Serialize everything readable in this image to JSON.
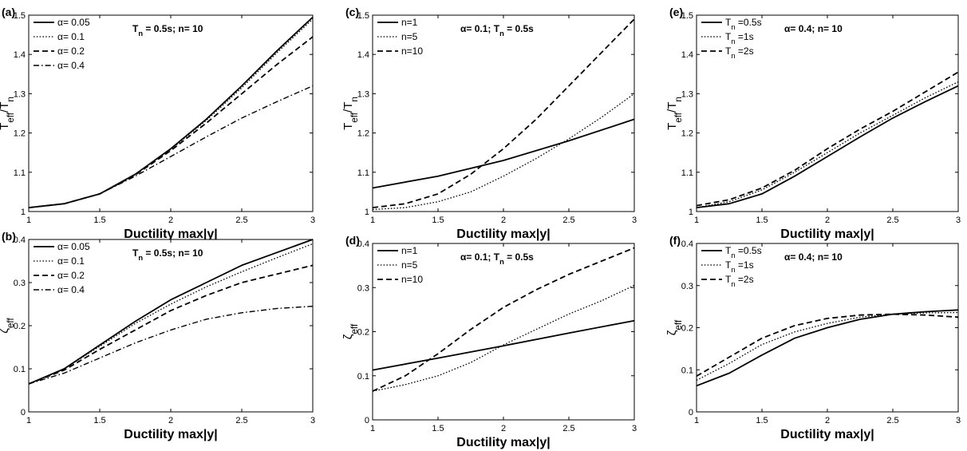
{
  "chart_data": [
    {
      "id": "a",
      "panel_label": "(a)",
      "type": "line",
      "annotation": "T_n = 0.5s; n= 10",
      "xlabel": "Ductility max|y|",
      "ylabel": "T_eff/T_n",
      "xlim": [
        1,
        3
      ],
      "ylim": [
        1,
        1.5
      ],
      "xticks": [
        "1",
        "1.5",
        "2",
        "2.5",
        "3"
      ],
      "yticks": [
        "1",
        "1.1",
        "1.2",
        "1.3",
        "1.4",
        "1.5"
      ],
      "legend_position": "top-left",
      "series": [
        {
          "name": "α= 0.05",
          "style": "solid",
          "x": [
            1,
            1.25,
            1.5,
            1.75,
            2,
            2.25,
            2.5,
            2.75,
            3
          ],
          "y": [
            1.01,
            1.02,
            1.045,
            1.095,
            1.16,
            1.235,
            1.32,
            1.41,
            1.495
          ]
        },
        {
          "name": "α= 0.1",
          "style": "dotted",
          "x": [
            1,
            1.25,
            1.5,
            1.75,
            2,
            2.25,
            2.5,
            2.75,
            3
          ],
          "y": [
            1.01,
            1.02,
            1.045,
            1.095,
            1.158,
            1.232,
            1.315,
            1.405,
            1.49
          ]
        },
        {
          "name": "α= 0.2",
          "style": "dashed",
          "x": [
            1,
            1.25,
            1.5,
            1.75,
            2,
            2.25,
            2.5,
            2.75,
            3
          ],
          "y": [
            1.01,
            1.02,
            1.045,
            1.093,
            1.155,
            1.225,
            1.3,
            1.375,
            1.445
          ]
        },
        {
          "name": "α= 0.4",
          "style": "dashdot",
          "x": [
            1,
            1.25,
            1.5,
            1.75,
            2,
            2.25,
            2.5,
            2.75,
            3
          ],
          "y": [
            1.01,
            1.02,
            1.045,
            1.09,
            1.14,
            1.19,
            1.238,
            1.28,
            1.32
          ]
        }
      ]
    },
    {
      "id": "c",
      "panel_label": "(c)",
      "type": "line",
      "annotation": "α= 0.1; T_n = 0.5s",
      "xlabel": "Ductility max|y|",
      "ylabel": "T_eff/T_n",
      "xlim": [
        1,
        3
      ],
      "ylim": [
        1,
        1.5
      ],
      "xticks": [
        "1",
        "1.5",
        "2",
        "2.5",
        "3"
      ],
      "yticks": [
        "1",
        "1.1",
        "1.2",
        "1.3",
        "1.4",
        "1.5"
      ],
      "legend_position": "top-left",
      "series": [
        {
          "name": "n=1",
          "style": "solid",
          "x": [
            1,
            1.5,
            2,
            2.5,
            3
          ],
          "y": [
            1.06,
            1.09,
            1.13,
            1.18,
            1.235
          ]
        },
        {
          "name": "n=5",
          "style": "dotted",
          "x": [
            1,
            1.25,
            1.5,
            1.75,
            2,
            2.25,
            2.5,
            2.75,
            3
          ],
          "y": [
            1.005,
            1.01,
            1.025,
            1.05,
            1.09,
            1.135,
            1.185,
            1.24,
            1.3
          ]
        },
        {
          "name": "n=10",
          "style": "dashed",
          "x": [
            1,
            1.25,
            1.5,
            1.75,
            2,
            2.25,
            2.5,
            2.75,
            3
          ],
          "y": [
            1.01,
            1.02,
            1.045,
            1.095,
            1.16,
            1.235,
            1.32,
            1.405,
            1.49
          ]
        }
      ]
    },
    {
      "id": "e",
      "panel_label": "(e)",
      "type": "line",
      "annotation": "α= 0.4; n= 10",
      "xlabel": "Ductility max|y|",
      "ylabel": "T_eff/T_n",
      "xlim": [
        1,
        3
      ],
      "ylim": [
        1,
        1.5
      ],
      "xticks": [
        "1",
        "1.5",
        "2",
        "2.5",
        "3"
      ],
      "yticks": [
        "1",
        "1.1",
        "1.2",
        "1.3",
        "1.4",
        "1.5"
      ],
      "legend_position": "top-left",
      "series": [
        {
          "name": "T_n =0.5s",
          "style": "solid",
          "x": [
            1,
            1.25,
            1.5,
            1.75,
            2,
            2.25,
            2.5,
            2.75,
            3
          ],
          "y": [
            1.01,
            1.02,
            1.045,
            1.09,
            1.14,
            1.19,
            1.238,
            1.28,
            1.32
          ]
        },
        {
          "name": "T_n =1s",
          "style": "dotted",
          "x": [
            1,
            1.25,
            1.5,
            1.75,
            2,
            2.25,
            2.5,
            2.75,
            3
          ],
          "y": [
            1.01,
            1.025,
            1.055,
            1.1,
            1.15,
            1.2,
            1.245,
            1.29,
            1.33
          ]
        },
        {
          "name": "T_n =2s",
          "style": "dashed",
          "x": [
            1,
            1.25,
            1.5,
            1.75,
            2,
            2.25,
            2.5,
            2.75,
            3
          ],
          "y": [
            1.015,
            1.03,
            1.06,
            1.105,
            1.16,
            1.21,
            1.255,
            1.305,
            1.355
          ]
        }
      ]
    },
    {
      "id": "b",
      "panel_label": "(b)",
      "type": "line",
      "annotation": "T_n = 0.5s; n= 10",
      "xlabel": "Ductility max|y|",
      "ylabel": "ζ_eff",
      "xlim": [
        1,
        3
      ],
      "ylim": [
        0,
        0.4
      ],
      "xticks": [
        "1",
        "1.5",
        "2",
        "2.5",
        "3"
      ],
      "yticks": [
        "0",
        "0.1",
        "0.2",
        "0.3",
        "0.4"
      ],
      "legend_position": "top-left",
      "series": [
        {
          "name": "α= 0.05",
          "style": "solid",
          "x": [
            1,
            1.25,
            1.5,
            1.75,
            2,
            2.25,
            2.5,
            2.75,
            3
          ],
          "y": [
            0.065,
            0.1,
            0.155,
            0.21,
            0.26,
            0.3,
            0.34,
            0.37,
            0.4
          ]
        },
        {
          "name": "α= 0.1",
          "style": "dotted",
          "x": [
            1,
            1.25,
            1.5,
            1.75,
            2,
            2.25,
            2.5,
            2.75,
            3
          ],
          "y": [
            0.065,
            0.1,
            0.152,
            0.205,
            0.25,
            0.29,
            0.325,
            0.358,
            0.39
          ]
        },
        {
          "name": "α= 0.2",
          "style": "dashed",
          "x": [
            1,
            1.25,
            1.5,
            1.75,
            2,
            2.25,
            2.5,
            2.75,
            3
          ],
          "y": [
            0.065,
            0.097,
            0.145,
            0.19,
            0.235,
            0.27,
            0.3,
            0.32,
            0.34
          ]
        },
        {
          "name": "α= 0.4",
          "style": "dashdot",
          "x": [
            1,
            1.25,
            1.5,
            1.75,
            2,
            2.25,
            2.5,
            2.75,
            3
          ],
          "y": [
            0.065,
            0.09,
            0.125,
            0.16,
            0.19,
            0.215,
            0.23,
            0.24,
            0.245
          ]
        }
      ]
    },
    {
      "id": "d",
      "panel_label": "(d)",
      "type": "line",
      "annotation": "α= 0.1; T_n = 0.5s",
      "xlabel": "Ductility max|y|",
      "ylabel": "ζ_eff",
      "xlim": [
        1,
        3
      ],
      "ylim": [
        0,
        0.4
      ],
      "xticks": [
        "1",
        "1.5",
        "2",
        "2.5",
        "3"
      ],
      "yticks": [
        "0",
        "0.1",
        "0.2",
        "0.3",
        "0.4"
      ],
      "legend_position": "top-left",
      "series": [
        {
          "name": "n=1",
          "style": "solid",
          "x": [
            1,
            1.5,
            2,
            2.5,
            3
          ],
          "y": [
            0.113,
            0.14,
            0.168,
            0.197,
            0.225
          ]
        },
        {
          "name": "n=5",
          "style": "dotted",
          "x": [
            1,
            1.25,
            1.5,
            1.75,
            2,
            2.25,
            2.5,
            2.75,
            3
          ],
          "y": [
            0.065,
            0.08,
            0.1,
            0.13,
            0.17,
            0.205,
            0.24,
            0.27,
            0.305
          ]
        },
        {
          "name": "n=10",
          "style": "dashed",
          "x": [
            1,
            1.25,
            1.5,
            1.75,
            2,
            2.25,
            2.5,
            2.75,
            3
          ],
          "y": [
            0.065,
            0.1,
            0.15,
            0.205,
            0.255,
            0.295,
            0.33,
            0.36,
            0.39
          ]
        }
      ]
    },
    {
      "id": "f",
      "panel_label": "(f)",
      "type": "line",
      "annotation": "α= 0.4; n= 10",
      "xlabel": "Ductility max|y|",
      "ylabel": "ζ_eff",
      "xlim": [
        1,
        3
      ],
      "ylim": [
        0,
        0.4
      ],
      "xticks": [
        "1",
        "1.5",
        "2",
        "2.5",
        "3"
      ],
      "yticks": [
        "0",
        "0.1",
        "0.2",
        "0.3",
        "0.4"
      ],
      "legend_position": "top-left",
      "series": [
        {
          "name": "T_n =0.5s",
          "style": "solid",
          "x": [
            1,
            1.25,
            1.5,
            1.75,
            2,
            2.25,
            2.5,
            2.75,
            3
          ],
          "y": [
            0.062,
            0.092,
            0.135,
            0.175,
            0.2,
            0.22,
            0.232,
            0.238,
            0.242
          ]
        },
        {
          "name": "T_n =1s",
          "style": "dotted",
          "x": [
            1,
            1.25,
            1.5,
            1.75,
            2,
            2.25,
            2.5,
            2.75,
            3
          ],
          "y": [
            0.075,
            0.115,
            0.16,
            0.19,
            0.21,
            0.225,
            0.232,
            0.235,
            0.236
          ]
        },
        {
          "name": "T_n =2s",
          "style": "dashed",
          "x": [
            1,
            1.25,
            1.5,
            1.75,
            2,
            2.25,
            2.5,
            2.75,
            3
          ],
          "y": [
            0.085,
            0.13,
            0.175,
            0.205,
            0.222,
            0.23,
            0.232,
            0.23,
            0.225
          ]
        }
      ]
    }
  ]
}
